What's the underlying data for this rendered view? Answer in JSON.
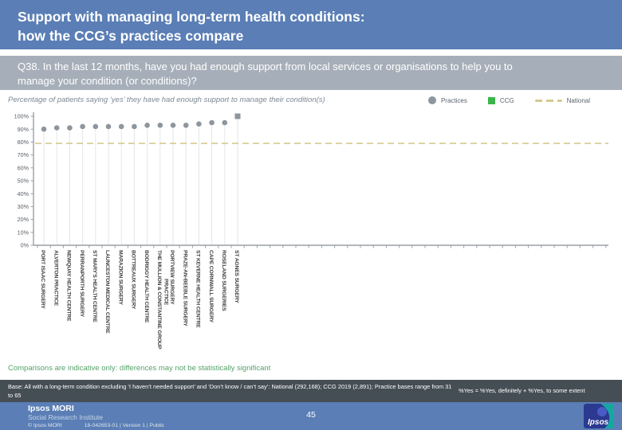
{
  "header": {
    "line1": "Support with managing long-term health conditions:",
    "line2": "how the CCG’s practices compare"
  },
  "question": "Q38. In the last 12 months, have you had enough support from local services or organisations to help you to manage your condition (or conditions)?",
  "chart_data": {
    "type": "scatter",
    "title": "Percentage of patients saying ‘yes’ they have had enough support to manage their condition(s)",
    "legend": [
      {
        "label": "Practices",
        "marker": "circle",
        "color": "#8d959d"
      },
      {
        "label": "CCG",
        "marker": "square",
        "color": "#3bb54a"
      },
      {
        "label": "National",
        "marker": "dashed-line",
        "color": "#d5c98e"
      }
    ],
    "y_ticks": [
      "100%",
      "90%",
      "80%",
      "70%",
      "60%",
      "50%",
      "40%",
      "30%",
      "20%",
      "10%",
      "0%"
    ],
    "ylim": [
      0,
      100
    ],
    "national_value": 79,
    "series": [
      {
        "name": "PORT ISAAC SURGERY",
        "value": 90,
        "marker": "circle"
      },
      {
        "name": "ALVERTON PRACTICE",
        "value": 91,
        "marker": "circle"
      },
      {
        "name": "NEWQUAY HEALTH CENTRE",
        "value": 91,
        "marker": "circle"
      },
      {
        "name": "PERRANPORTH SURGERY",
        "value": 92,
        "marker": "circle"
      },
      {
        "name": "ST MARY'S HEALTH CENTRE",
        "value": 92,
        "marker": "circle"
      },
      {
        "name": "LAUNCESTON MEDICAL CENTRE",
        "value": 92,
        "marker": "circle"
      },
      {
        "name": "MARAZION SURGERY",
        "value": 92,
        "marker": "circle"
      },
      {
        "name": "BOTTREAUX SURGERY",
        "value": 92,
        "marker": "circle"
      },
      {
        "name": "BODRIGGY HEALTH CENTRE",
        "value": 93,
        "marker": "circle"
      },
      {
        "name": "THE MULLION & CONSTANTINE GROUP\nPRACTICE",
        "value": 93,
        "marker": "circle"
      },
      {
        "name": "PORTVIEW SURGERY",
        "value": 93,
        "marker": "circle"
      },
      {
        "name": "PRAZE-AN-BEEBLE SURGERY",
        "value": 93,
        "marker": "circle"
      },
      {
        "name": "ST KEVERNE HEALTH CENTRE",
        "value": 94,
        "marker": "circle"
      },
      {
        "name": "CAPE CORNWALL SURGERY",
        "value": 95,
        "marker": "circle"
      },
      {
        "name": "ROSELAND SURGERIES",
        "value": 95,
        "marker": "circle"
      },
      {
        "name": "ST AGNES SURGERY",
        "value": 100,
        "marker": "square"
      }
    ],
    "layout": {
      "grid": false,
      "legend_position": "top-right",
      "x_labels_rotated": true
    }
  },
  "note": "Comparisons are indicative only: differences may not be statistically significant",
  "base_bar": {
    "base_text": "Base: All with a long-term condition excluding ‘I haven’t needed support’ and ‘Don’t know / can’t say’: National (292,168); CCG 2019 (2,891); Practice bases range from 31 to 65",
    "definition": "%Yes = %Yes, definitely + %Yes, to some extent"
  },
  "footer": {
    "brand": "Ipsos MORI",
    "brand_sub": "Social Research Institute",
    "copyright": "© Ipsos MORI",
    "doc_ref": "18-042653-01 | Version 1 | Public",
    "page_number": "45",
    "logo_text": "Ipsos"
  },
  "colors": {
    "header_bg": "#5a7eb5",
    "question_bg": "#a6afb9",
    "dark_bar_bg": "#454d55",
    "footer_bg": "#5a7eb5",
    "note_green": "#55a369",
    "practice_dot": "#8d959d",
    "national_line": "#d5c98e",
    "ccg_green": "#3bb54a"
  }
}
